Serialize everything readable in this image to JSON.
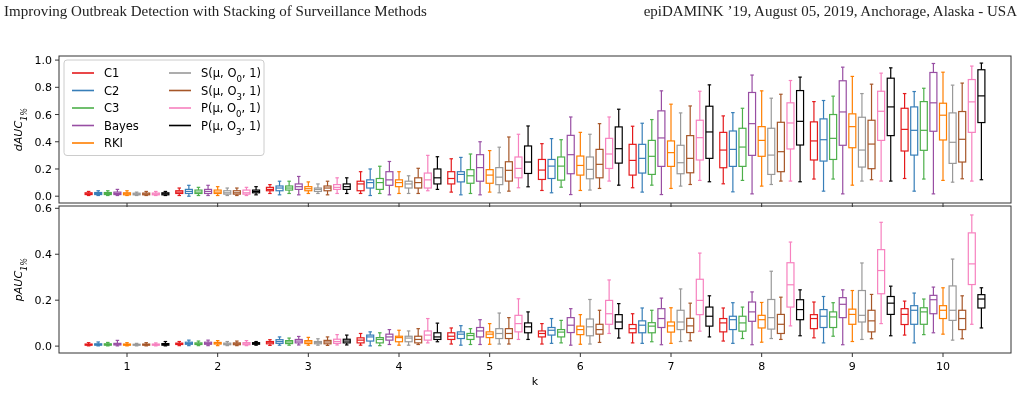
{
  "chart_data": [
    {
      "type": "box",
      "annotations": [
        "Improving Outbreak Detection with Stacking of Surveillance Methods",
        "epiDAMINK ’19, August 05, 2019, Anchorage, Alaska - USA"
      ],
      "ylabel": "dAUC$_{1%}$",
      "categories": [
        "1",
        "2",
        "3",
        "4",
        "5",
        "6",
        "7",
        "8",
        "9",
        "10"
      ],
      "ylim": [
        -0.05,
        1.03
      ],
      "yticks": [
        {
          "value": 0,
          "label": "0.0"
        },
        {
          "value": 0.2,
          "label": "0.2"
        },
        {
          "value": 0.4,
          "label": "0.4"
        },
        {
          "value": 0.6,
          "label": "0.6"
        },
        {
          "value": 0.8,
          "label": "0.8"
        },
        {
          "value": 1,
          "label": "1.0"
        }
      ],
      "tick_labels": "y",
      "legend": "top left",
      "series": [
        {
          "name": "C1",
          "color": "#e41a1c",
          "boxes": [
            {
              "low": 0.005,
              "q1": 0.012,
              "median": 0.018,
              "q3": 0.025,
              "high": 0.035
            },
            {
              "low": 0.005,
              "q1": 0.02,
              "median": 0.03,
              "q3": 0.04,
              "high": 0.06
            },
            {
              "low": 0.02,
              "q1": 0.04,
              "median": 0.05,
              "q3": 0.065,
              "high": 0.085
            },
            {
              "low": 0.02,
              "q1": 0.04,
              "median": 0.09,
              "q3": 0.11,
              "high": 0.18
            },
            {
              "low": 0.03,
              "q1": 0.09,
              "median": 0.13,
              "q3": 0.18,
              "high": 0.275
            },
            {
              "low": 0.042,
              "q1": 0.123,
              "median": 0.192,
              "q3": 0.27,
              "high": 0.386
            },
            {
              "low": 0.062,
              "q1": 0.155,
              "median": 0.263,
              "q3": 0.381,
              "high": 0.514
            },
            {
              "low": 0.091,
              "q1": 0.209,
              "median": 0.339,
              "q3": 0.469,
              "high": 0.59
            },
            {
              "low": 0.126,
              "q1": 0.266,
              "median": 0.406,
              "q3": 0.546,
              "high": 0.695
            },
            {
              "low": 0.13,
              "q1": 0.332,
              "median": 0.491,
              "q3": 0.646,
              "high": 0.754
            }
          ]
        },
        {
          "name": "C2",
          "color": "#377eb8",
          "boxes": [
            {
              "low": 0.005,
              "q1": 0.012,
              "median": 0.02,
              "q3": 0.027,
              "high": 0.04
            },
            {
              "low": 0,
              "q1": 0.02,
              "median": 0.035,
              "q3": 0.05,
              "high": 0.08
            },
            {
              "low": 0.01,
              "q1": 0.04,
              "median": 0.06,
              "q3": 0.075,
              "high": 0.11
            },
            {
              "low": 0.005,
              "q1": 0.06,
              "median": 0.1,
              "q3": 0.12,
              "high": 0.2
            },
            {
              "low": 0.01,
              "q1": 0.105,
              "median": 0.16,
              "q3": 0.18,
              "high": 0.285
            },
            {
              "low": 0.025,
              "q1": 0.13,
              "median": 0.221,
              "q3": 0.27,
              "high": 0.423
            },
            {
              "low": 0.03,
              "q1": 0.17,
              "median": 0.278,
              "q3": 0.381,
              "high": 0.536
            },
            {
              "low": 0.032,
              "q1": 0.219,
              "median": 0.344,
              "q3": 0.479,
              "high": 0.614
            },
            {
              "low": 0.037,
              "q1": 0.258,
              "median": 0.415,
              "q3": 0.568,
              "high": 0.703
            },
            {
              "low": 0.037,
              "q1": 0.302,
              "median": 0.484,
              "q3": 0.656,
              "high": 0.769
            }
          ]
        },
        {
          "name": "C3",
          "color": "#4daf4a",
          "boxes": [
            {
              "low": 0.005,
              "q1": 0.012,
              "median": 0.02,
              "q3": 0.027,
              "high": 0.04
            },
            {
              "low": 0.005,
              "q1": 0.02,
              "median": 0.03,
              "q3": 0.045,
              "high": 0.065
            },
            {
              "low": 0.02,
              "q1": 0.045,
              "median": 0.06,
              "q3": 0.075,
              "high": 0.11
            },
            {
              "low": 0.02,
              "q1": 0.05,
              "median": 0.1,
              "q3": 0.13,
              "high": 0.22
            },
            {
              "low": 0.02,
              "q1": 0.095,
              "median": 0.15,
              "q3": 0.195,
              "high": 0.31
            },
            {
              "low": 0.066,
              "q1": 0.118,
              "median": 0.221,
              "q3": 0.288,
              "high": 0.415
            },
            {
              "low": 0.081,
              "q1": 0.16,
              "median": 0.293,
              "q3": 0.41,
              "high": 0.563
            },
            {
              "low": 0.116,
              "q1": 0.219,
              "median": 0.361,
              "q3": 0.499,
              "high": 0.646
            },
            {
              "low": 0.126,
              "q1": 0.27,
              "median": 0.425,
              "q3": 0.6,
              "high": 0.735
            },
            {
              "low": 0.126,
              "q1": 0.337,
              "median": 0.484,
              "q3": 0.695,
              "high": 0.793
            }
          ]
        },
        {
          "name": "Bayes",
          "color": "#984ea3",
          "boxes": [
            {
              "low": 0.005,
              "q1": 0.012,
              "median": 0.02,
              "q3": 0.03,
              "high": 0.05
            },
            {
              "low": 0.005,
              "q1": 0.02,
              "median": 0.035,
              "q3": 0.05,
              "high": 0.08
            },
            {
              "low": 0.01,
              "q1": 0.05,
              "median": 0.07,
              "q3": 0.09,
              "high": 0.145
            },
            {
              "low": 0.01,
              "q1": 0.08,
              "median": 0.12,
              "q3": 0.18,
              "high": 0.255
            },
            {
              "low": 0.01,
              "q1": 0.11,
              "median": 0.21,
              "q3": 0.305,
              "high": 0.4
            },
            {
              "low": 0.012,
              "q1": 0.165,
              "median": 0.305,
              "q3": 0.447,
              "high": 0.582
            },
            {
              "low": 0.012,
              "q1": 0.219,
              "median": 0.428,
              "q3": 0.627,
              "high": 0.774
            },
            {
              "low": 0.017,
              "q1": 0.3,
              "median": 0.533,
              "q3": 0.762,
              "high": 0.89
            },
            {
              "low": 0.017,
              "q1": 0.374,
              "median": 0.619,
              "q3": 0.848,
              "high": 0.948
            },
            {
              "low": 0.017,
              "q1": 0.477,
              "median": 0.686,
              "q3": 0.909,
              "high": 0.975
            }
          ]
        },
        {
          "name": "RKI",
          "color": "#ff7f00",
          "boxes": [
            {
              "low": 0.005,
              "q1": 0.01,
              "median": 0.018,
              "q3": 0.025,
              "high": 0.04
            },
            {
              "low": 0.005,
              "q1": 0.02,
              "median": 0.03,
              "q3": 0.045,
              "high": 0.07
            },
            {
              "low": 0.02,
              "q1": 0.04,
              "median": 0.055,
              "q3": 0.07,
              "high": 0.105
            },
            {
              "low": 0.02,
              "q1": 0.07,
              "median": 0.1,
              "q3": 0.12,
              "high": 0.18
            },
            {
              "low": 0.03,
              "q1": 0.095,
              "median": 0.155,
              "q3": 0.195,
              "high": 0.335
            },
            {
              "low": 0.042,
              "q1": 0.155,
              "median": 0.226,
              "q3": 0.295,
              "high": 0.469
            },
            {
              "low": 0.057,
              "q1": 0.219,
              "median": 0.32,
              "q3": 0.406,
              "high": 0.676
            },
            {
              "low": 0.074,
              "q1": 0.293,
              "median": 0.41,
              "q3": 0.511,
              "high": 0.774
            },
            {
              "low": 0.081,
              "q1": 0.356,
              "median": 0.511,
              "q3": 0.605,
              "high": 0.88
            },
            {
              "low": 0.116,
              "q1": 0.413,
              "median": 0.595,
              "q3": 0.683,
              "high": 0.911
            }
          ]
        },
        {
          "name": "S(μ, O$_{0}$, 1)",
          "color": "#999999",
          "boxes": [
            {
              "low": 0.005,
              "q1": 0.01,
              "median": 0.015,
              "q3": 0.022,
              "high": 0.03
            },
            {
              "low": 0.005,
              "q1": 0.015,
              "median": 0.025,
              "q3": 0.04,
              "high": 0.06
            },
            {
              "low": 0.02,
              "q1": 0.035,
              "median": 0.05,
              "q3": 0.06,
              "high": 0.09
            },
            {
              "low": 0.02,
              "q1": 0.06,
              "median": 0.09,
              "q3": 0.11,
              "high": 0.15
            },
            {
              "low": 0.025,
              "q1": 0.085,
              "median": 0.14,
              "q3": 0.21,
              "high": 0.36
            },
            {
              "low": 0.045,
              "q1": 0.128,
              "median": 0.197,
              "q3": 0.288,
              "high": 0.455
            },
            {
              "low": 0.074,
              "q1": 0.165,
              "median": 0.246,
              "q3": 0.374,
              "high": 0.612
            },
            {
              "low": 0.086,
              "q1": 0.16,
              "median": 0.302,
              "q3": 0.499,
              "high": 0.72
            },
            {
              "low": 0.111,
              "q1": 0.214,
              "median": 0.339,
              "q3": 0.58,
              "high": 0.754
            },
            {
              "low": 0.103,
              "q1": 0.241,
              "median": 0.396,
              "q3": 0.612,
              "high": 0.816
            }
          ]
        },
        {
          "name": "S(μ, O$_{3}$, 1)",
          "color": "#a65628",
          "boxes": [
            {
              "low": 0.005,
              "q1": 0.01,
              "median": 0.016,
              "q3": 0.023,
              "high": 0.035
            },
            {
              "low": 0.005,
              "q1": 0.015,
              "median": 0.025,
              "q3": 0.04,
              "high": 0.06
            },
            {
              "low": 0.01,
              "q1": 0.04,
              "median": 0.06,
              "q3": 0.075,
              "high": 0.11
            },
            {
              "low": 0.02,
              "q1": 0.06,
              "median": 0.1,
              "q3": 0.135,
              "high": 0.205
            },
            {
              "low": 0.037,
              "q1": 0.111,
              "median": 0.19,
              "q3": 0.253,
              "high": 0.435
            },
            {
              "low": 0.057,
              "q1": 0.135,
              "median": 0.234,
              "q3": 0.344,
              "high": 0.533
            },
            {
              "low": 0.086,
              "q1": 0.172,
              "median": 0.278,
              "q3": 0.445,
              "high": 0.663
            },
            {
              "low": 0.111,
              "q1": 0.18,
              "median": 0.327,
              "q3": 0.543,
              "high": 0.749
            },
            {
              "low": 0.121,
              "q1": 0.202,
              "median": 0.383,
              "q3": 0.558,
              "high": 0.823
            },
            {
              "low": 0.128,
              "q1": 0.251,
              "median": 0.418,
              "q3": 0.622,
              "high": 0.831
            }
          ]
        },
        {
          "name": "P(μ, O$_{0}$, 1)",
          "color": "#f781bf",
          "boxes": [
            {
              "low": 0.005,
              "q1": 0.01,
              "median": 0.016,
              "q3": 0.023,
              "high": 0.035
            },
            {
              "low": 0.005,
              "q1": 0.015,
              "median": 0.025,
              "q3": 0.045,
              "high": 0.065
            },
            {
              "low": 0.02,
              "q1": 0.05,
              "median": 0.065,
              "q3": 0.085,
              "high": 0.135
            },
            {
              "low": 0.04,
              "q1": 0.06,
              "median": 0.12,
              "q3": 0.17,
              "high": 0.3
            },
            {
              "low": 0.062,
              "q1": 0.135,
              "median": 0.204,
              "q3": 0.288,
              "high": 0.455
            },
            {
              "low": 0.111,
              "q1": 0.204,
              "median": 0.31,
              "q3": 0.425,
              "high": 0.582
            },
            {
              "low": 0.116,
              "q1": 0.266,
              "median": 0.43,
              "q3": 0.558,
              "high": 0.771
            },
            {
              "low": 0.111,
              "q1": 0.347,
              "median": 0.538,
              "q3": 0.686,
              "high": 0.85
            },
            {
              "low": 0.111,
              "q1": 0.41,
              "median": 0.624,
              "q3": 0.771,
              "high": 0.904
            },
            {
              "low": 0.111,
              "q1": 0.469,
              "median": 0.693,
              "q3": 0.857,
              "high": 0.956
            }
          ]
        },
        {
          "name": "P(μ, O$_{3}$, 1)",
          "color": "#000000",
          "boxes": [
            {
              "low": 0.005,
              "q1": 0.01,
              "median": 0.018,
              "q3": 0.025,
              "high": 0.035
            },
            {
              "low": 0.01,
              "q1": 0.025,
              "median": 0.035,
              "q3": 0.045,
              "high": 0.07
            },
            {
              "low": 0.02,
              "q1": 0.05,
              "median": 0.07,
              "q3": 0.09,
              "high": 0.135
            },
            {
              "low": 0.05,
              "q1": 0.09,
              "median": 0.135,
              "q3": 0.2,
              "high": 0.29
            },
            {
              "low": 0.069,
              "q1": 0.167,
              "median": 0.251,
              "q3": 0.369,
              "high": 0.516
            },
            {
              "low": 0.081,
              "q1": 0.243,
              "median": 0.349,
              "q3": 0.509,
              "high": 0.639
            },
            {
              "low": 0.106,
              "q1": 0.278,
              "median": 0.472,
              "q3": 0.661,
              "high": 0.818
            },
            {
              "low": 0.106,
              "q1": 0.376,
              "median": 0.55,
              "q3": 0.776,
              "high": 0.875
            },
            {
              "low": 0.111,
              "q1": 0.445,
              "median": 0.656,
              "q3": 0.867,
              "high": 0.943
            },
            {
              "low": 0.121,
              "q1": 0.541,
              "median": 0.737,
              "q3": 0.929,
              "high": 0.978
            }
          ]
        }
      ]
    },
    {
      "type": "box",
      "ylabel": "pAUC$_{1%}$",
      "xlabel": "k",
      "categories": [
        "1",
        "2",
        "3",
        "4",
        "5",
        "6",
        "7",
        "8",
        "9",
        "10"
      ],
      "ylim": [
        -0.03,
        0.61
      ],
      "yticks": [
        {
          "value": 0,
          "label": "0.0"
        },
        {
          "value": 0.2,
          "label": "0.2"
        },
        {
          "value": 0.4,
          "label": "0.4"
        },
        {
          "value": 0.6,
          "label": "0.6"
        }
      ],
      "series": [
        {
          "color": "#e41a1c",
          "boxes": [
            {
              "low": 0.001,
              "q1": 0.004,
              "median": 0.006,
              "q3": 0.009,
              "high": 0.015
            },
            {
              "low": 0.002,
              "q1": 0.007,
              "median": 0.01,
              "q3": 0.013,
              "high": 0.02
            },
            {
              "low": 0.003,
              "q1": 0.01,
              "median": 0.017,
              "q3": 0.02,
              "high": 0.028
            },
            {
              "low": 0.004,
              "q1": 0.014,
              "median": 0.026,
              "q3": 0.036,
              "high": 0.055
            },
            {
              "low": 0.009,
              "q1": 0.029,
              "median": 0.043,
              "q3": 0.058,
              "high": 0.079
            },
            {
              "low": 0.009,
              "q1": 0.04,
              "median": 0.055,
              "q3": 0.066,
              "high": 0.098
            },
            {
              "low": 0.014,
              "q1": 0.058,
              "median": 0.076,
              "q3": 0.094,
              "high": 0.141
            },
            {
              "low": 0.022,
              "q1": 0.062,
              "median": 0.101,
              "q3": 0.12,
              "high": 0.166
            },
            {
              "low": 0.036,
              "q1": 0.076,
              "median": 0.12,
              "q3": 0.137,
              "high": 0.192
            },
            {
              "low": 0.048,
              "q1": 0.094,
              "median": 0.138,
              "q3": 0.163,
              "high": 0.196
            }
          ]
        },
        {
          "color": "#377eb8",
          "boxes": [
            {
              "low": 0.001,
              "q1": 0.004,
              "median": 0.007,
              "q3": 0.01,
              "high": 0.018
            },
            {
              "low": 0.002,
              "q1": 0.008,
              "median": 0.012,
              "q3": 0.017,
              "high": 0.026
            },
            {
              "low": 0.004,
              "q1": 0.012,
              "median": 0.02,
              "q3": 0.028,
              "high": 0.04
            },
            {
              "low": 0.001,
              "q1": 0.022,
              "median": 0.04,
              "q3": 0.048,
              "high": 0.062
            },
            {
              "low": 0.004,
              "q1": 0.033,
              "median": 0.052,
              "q3": 0.062,
              "high": 0.089
            },
            {
              "low": 0.012,
              "q1": 0.048,
              "median": 0.069,
              "q3": 0.081,
              "high": 0.12
            },
            {
              "low": 0.012,
              "q1": 0.058,
              "median": 0.091,
              "q3": 0.11,
              "high": 0.166
            },
            {
              "low": 0.012,
              "q1": 0.072,
              "median": 0.115,
              "q3": 0.13,
              "high": 0.189
            },
            {
              "low": 0.014,
              "q1": 0.081,
              "median": 0.13,
              "q3": 0.159,
              "high": 0.216
            },
            {
              "low": 0.014,
              "q1": 0.095,
              "median": 0.156,
              "q3": 0.176,
              "high": 0.231
            }
          ]
        },
        {
          "color": "#4daf4a",
          "boxes": [
            {
              "low": 0.001,
              "q1": 0.004,
              "median": 0.007,
              "q3": 0.01,
              "high": 0.016
            },
            {
              "low": 0.002,
              "q1": 0.007,
              "median": 0.01,
              "q3": 0.014,
              "high": 0.022
            },
            {
              "low": 0.004,
              "q1": 0.011,
              "median": 0.018,
              "q3": 0.024,
              "high": 0.035
            },
            {
              "low": 0.002,
              "q1": 0.014,
              "median": 0.029,
              "q3": 0.037,
              "high": 0.058
            },
            {
              "low": 0.007,
              "q1": 0.029,
              "median": 0.046,
              "q3": 0.055,
              "high": 0.076
            },
            {
              "low": 0.014,
              "q1": 0.04,
              "median": 0.061,
              "q3": 0.072,
              "high": 0.112
            },
            {
              "low": 0.019,
              "q1": 0.058,
              "median": 0.087,
              "q3": 0.102,
              "high": 0.156
            },
            {
              "low": 0.033,
              "q1": 0.065,
              "median": 0.101,
              "q3": 0.13,
              "high": 0.17
            },
            {
              "low": 0.043,
              "q1": 0.081,
              "median": 0.127,
              "q3": 0.149,
              "high": 0.189
            },
            {
              "low": 0.05,
              "q1": 0.095,
              "median": 0.149,
              "q3": 0.167,
              "high": 0.205
            }
          ]
        },
        {
          "color": "#984ea3",
          "boxes": [
            {
              "low": 0.001,
              "q1": 0.005,
              "median": 0.008,
              "q3": 0.012,
              "high": 0.025
            },
            {
              "low": 0.002,
              "q1": 0.008,
              "median": 0.012,
              "q3": 0.017,
              "high": 0.026
            },
            {
              "low": 0.005,
              "q1": 0.014,
              "median": 0.022,
              "q3": 0.029,
              "high": 0.042
            },
            {
              "low": 0.007,
              "q1": 0.026,
              "median": 0.04,
              "q3": 0.052,
              "high": 0.072
            },
            {
              "low": 0.007,
              "q1": 0.04,
              "median": 0.066,
              "q3": 0.081,
              "high": 0.115
            },
            {
              "low": 0.004,
              "q1": 0.059,
              "median": 0.091,
              "q3": 0.124,
              "high": 0.163
            },
            {
              "low": 0.006,
              "q1": 0.081,
              "median": 0.12,
              "q3": 0.163,
              "high": 0.209
            },
            {
              "low": 0.006,
              "q1": 0.108,
              "median": 0.149,
              "q3": 0.192,
              "high": 0.236
            },
            {
              "low": 0.006,
              "q1": 0.124,
              "median": 0.182,
              "q3": 0.211,
              "high": 0.245
            },
            {
              "low": 0.058,
              "q1": 0.141,
              "median": 0.202,
              "q3": 0.221,
              "high": 0.257
            }
          ]
        },
        {
          "color": "#ff7f00",
          "boxes": [
            {
              "low": 0.001,
              "q1": 0.004,
              "median": 0.006,
              "q3": 0.009,
              "high": 0.015
            },
            {
              "low": 0.002,
              "q1": 0.009,
              "median": 0.013,
              "q3": 0.016,
              "high": 0.024
            },
            {
              "low": 0.004,
              "q1": 0.011,
              "median": 0.018,
              "q3": 0.024,
              "high": 0.038
            },
            {
              "low": 0.004,
              "q1": 0.019,
              "median": 0.037,
              "q3": 0.043,
              "high": 0.069
            },
            {
              "low": 0.008,
              "q1": 0.037,
              "median": 0.052,
              "q3": 0.062,
              "high": 0.098
            },
            {
              "low": 0.008,
              "q1": 0.05,
              "median": 0.072,
              "q3": 0.087,
              "high": 0.137
            },
            {
              "low": 0.012,
              "q1": 0.061,
              "median": 0.088,
              "q3": 0.105,
              "high": 0.167
            },
            {
              "low": 0.017,
              "q1": 0.079,
              "median": 0.115,
              "q3": 0.134,
              "high": 0.19
            },
            {
              "low": 0.02,
              "q1": 0.095,
              "median": 0.138,
              "q3": 0.161,
              "high": 0.242
            },
            {
              "low": 0.052,
              "q1": 0.12,
              "median": 0.156,
              "q3": 0.176,
              "high": 0.254
            }
          ]
        },
        {
          "color": "#999999",
          "boxes": [
            {
              "low": 0.001,
              "q1": 0.004,
              "median": 0.006,
              "q3": 0.008,
              "high": 0.012
            },
            {
              "low": 0.002,
              "q1": 0.006,
              "median": 0.009,
              "q3": 0.013,
              "high": 0.02
            },
            {
              "low": 0.004,
              "q1": 0.01,
              "median": 0.015,
              "q3": 0.02,
              "high": 0.032
            },
            {
              "low": 0.004,
              "q1": 0.019,
              "median": 0.035,
              "q3": 0.043,
              "high": 0.066
            },
            {
              "low": 0.009,
              "q1": 0.033,
              "median": 0.055,
              "q3": 0.076,
              "high": 0.144
            },
            {
              "low": 0.009,
              "q1": 0.045,
              "median": 0.084,
              "q3": 0.118,
              "high": 0.203
            },
            {
              "low": 0.02,
              "q1": 0.072,
              "median": 0.105,
              "q3": 0.156,
              "high": 0.249
            },
            {
              "low": 0.033,
              "q1": 0.074,
              "median": 0.124,
              "q3": 0.203,
              "high": 0.326
            },
            {
              "low": 0.029,
              "q1": 0.105,
              "median": 0.134,
              "q3": 0.242,
              "high": 0.362
            },
            {
              "low": 0.026,
              "q1": 0.112,
              "median": 0.156,
              "q3": 0.262,
              "high": 0.379
            }
          ]
        },
        {
          "color": "#a65628",
          "boxes": [
            {
              "low": 0.001,
              "q1": 0.004,
              "median": 0.006,
              "q3": 0.009,
              "high": 0.015
            },
            {
              "low": 0.002,
              "q1": 0.006,
              "median": 0.01,
              "q3": 0.014,
              "high": 0.022
            },
            {
              "low": 0.003,
              "q1": 0.01,
              "median": 0.018,
              "q3": 0.025,
              "high": 0.04
            },
            {
              "low": 0.007,
              "q1": 0.014,
              "median": 0.029,
              "q3": 0.043,
              "high": 0.076
            },
            {
              "low": 0.009,
              "q1": 0.033,
              "median": 0.055,
              "q3": 0.076,
              "high": 0.124
            },
            {
              "low": 0.016,
              "q1": 0.052,
              "median": 0.072,
              "q3": 0.095,
              "high": 0.156
            },
            {
              "low": 0.023,
              "q1": 0.059,
              "median": 0.088,
              "q3": 0.121,
              "high": 0.187
            },
            {
              "low": 0.029,
              "q1": 0.055,
              "median": 0.095,
              "q3": 0.138,
              "high": 0.213
            },
            {
              "low": 0.032,
              "q1": 0.062,
              "median": 0.11,
              "q3": 0.156,
              "high": 0.225
            },
            {
              "low": 0.032,
              "q1": 0.072,
              "median": 0.12,
              "q3": 0.156,
              "high": 0.219
            }
          ]
        },
        {
          "color": "#f781bf",
          "boxes": [
            {
              "low": 0.001,
              "q1": 0.004,
              "median": 0.006,
              "q3": 0.009,
              "high": 0.014
            },
            {
              "low": 0.002,
              "q1": 0.006,
              "median": 0.01,
              "q3": 0.015,
              "high": 0.024
            },
            {
              "low": 0.005,
              "q1": 0.012,
              "median": 0.02,
              "q3": 0.03,
              "high": 0.05
            },
            {
              "low": 0.014,
              "q1": 0.026,
              "median": 0.048,
              "q3": 0.066,
              "high": 0.12
            },
            {
              "low": 0.029,
              "q1": 0.062,
              "median": 0.098,
              "q3": 0.134,
              "high": 0.206
            },
            {
              "low": 0.055,
              "q1": 0.095,
              "median": 0.141,
              "q3": 0.199,
              "high": 0.288
            },
            {
              "low": 0.065,
              "q1": 0.137,
              "median": 0.199,
              "q3": 0.291,
              "high": 0.405
            },
            {
              "low": 0.088,
              "q1": 0.17,
              "median": 0.267,
              "q3": 0.363,
              "high": 0.453
            },
            {
              "low": 0.098,
              "q1": 0.228,
              "median": 0.329,
              "q3": 0.42,
              "high": 0.539
            },
            {
              "low": 0.095,
              "q1": 0.268,
              "median": 0.358,
              "q3": 0.493,
              "high": 0.571
            }
          ]
        },
        {
          "color": "#000000",
          "boxes": [
            {
              "low": 0.001,
              "q1": 0.004,
              "median": 0.007,
              "q3": 0.011,
              "high": 0.02
            },
            {
              "low": 0.004,
              "q1": 0.008,
              "median": 0.012,
              "q3": 0.015,
              "high": 0.02
            },
            {
              "low": 0.005,
              "q1": 0.014,
              "median": 0.022,
              "q3": 0.03,
              "high": 0.048
            },
            {
              "low": 0.019,
              "q1": 0.029,
              "median": 0.04,
              "q3": 0.058,
              "high": 0.1
            },
            {
              "low": 0.029,
              "q1": 0.058,
              "median": 0.084,
              "q3": 0.101,
              "high": 0.149
            },
            {
              "low": 0.035,
              "q1": 0.076,
              "median": 0.105,
              "q3": 0.137,
              "high": 0.185
            },
            {
              "low": 0.04,
              "q1": 0.087,
              "median": 0.13,
              "q3": 0.17,
              "high": 0.219
            },
            {
              "low": 0.045,
              "q1": 0.115,
              "median": 0.159,
              "q3": 0.202,
              "high": 0.245
            },
            {
              "low": 0.045,
              "q1": 0.138,
              "median": 0.187,
              "q3": 0.216,
              "high": 0.261
            },
            {
              "low": 0.079,
              "q1": 0.166,
              "median": 0.205,
              "q3": 0.224,
              "high": 0.254
            }
          ]
        }
      ]
    }
  ]
}
